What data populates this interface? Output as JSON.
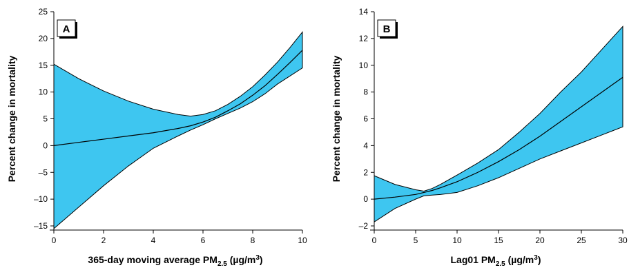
{
  "colors": {
    "band": "#3ec6f0",
    "line": "#000000"
  },
  "chart_data": [
    {
      "type": "line",
      "panel_label": "A",
      "xlabel_main": "365-day moving average PM",
      "xlabel_sub": "2.5",
      "xlabel_unit": " (µg/m",
      "xlabel_sup": "3",
      "xlabel_end": ")",
      "ylabel": "Percent change in mortality",
      "xlim": [
        0,
        10
      ],
      "ylim": [
        -15,
        25
      ],
      "xticks": [
        0,
        2,
        4,
        6,
        8,
        10
      ],
      "xtick_labels": [
        "0",
        "2",
        "4",
        "6",
        "8",
        "10"
      ],
      "yticks": [
        -15,
        -10,
        -5,
        0,
        5,
        10,
        15,
        20,
        25
      ],
      "ytick_labels": [
        "–15",
        "–10",
        "–5",
        "0",
        "5",
        "10",
        "15",
        "20",
        "25"
      ],
      "series": [
        {
          "x": [
            0,
            1,
            2,
            3,
            4,
            5,
            5.5,
            6,
            6.5,
            7,
            7.5,
            8,
            8.5,
            9,
            9.5,
            10
          ],
          "y": [
            0,
            0.6,
            1.2,
            1.8,
            2.4,
            3.2,
            3.7,
            4.4,
            5.3,
            6.5,
            7.8,
            9.4,
            11.2,
            13.3,
            15.5,
            17.8
          ],
          "lower": [
            -15.5,
            -11.5,
            -7.5,
            -3.8,
            -0.5,
            1.8,
            2.9,
            3.9,
            5.0,
            6.0,
            7.0,
            8.2,
            9.7,
            11.5,
            13.0,
            14.5
          ],
          "upper": [
            15.2,
            12.5,
            10.2,
            8.3,
            6.8,
            5.8,
            5.5,
            5.8,
            6.5,
            7.7,
            9.2,
            11.0,
            13.2,
            15.6,
            18.3,
            21.2
          ]
        }
      ]
    },
    {
      "type": "line",
      "panel_label": "B",
      "xlabel_main": "Lag01 PM",
      "xlabel_sub": "2.5",
      "xlabel_unit": " (µg/m",
      "xlabel_sup": "3",
      "xlabel_end": ")",
      "ylabel": "Percent change in mortality",
      "xlim": [
        0,
        30
      ],
      "ylim": [
        -2,
        14
      ],
      "xticks": [
        0,
        5,
        10,
        15,
        20,
        25,
        30
      ],
      "xtick_labels": [
        "0",
        "5",
        "10",
        "15",
        "20",
        "25",
        "30"
      ],
      "yticks": [
        -2,
        0,
        2,
        4,
        6,
        8,
        10,
        12,
        14
      ],
      "ytick_labels": [
        "–2",
        "0",
        "2",
        "4",
        "6",
        "8",
        "10",
        "12",
        "14"
      ],
      "series": [
        {
          "x": [
            0,
            2.5,
            5,
            6,
            7,
            8,
            10,
            12.5,
            15,
            17.5,
            20,
            22.5,
            25,
            27.5,
            30
          ],
          "y": [
            0,
            0.15,
            0.35,
            0.5,
            0.65,
            0.85,
            1.3,
            2.0,
            2.8,
            3.7,
            4.7,
            5.8,
            6.9,
            8.0,
            9.1
          ],
          "lower": [
            -1.7,
            -0.7,
            0.0,
            0.25,
            0.3,
            0.35,
            0.5,
            1.0,
            1.6,
            2.3,
            3.0,
            3.6,
            4.2,
            4.8,
            5.4
          ],
          "upper": [
            1.75,
            1.1,
            0.7,
            0.6,
            0.8,
            1.1,
            1.8,
            2.7,
            3.7,
            5.0,
            6.4,
            8.0,
            9.5,
            11.2,
            12.9
          ]
        }
      ]
    }
  ]
}
